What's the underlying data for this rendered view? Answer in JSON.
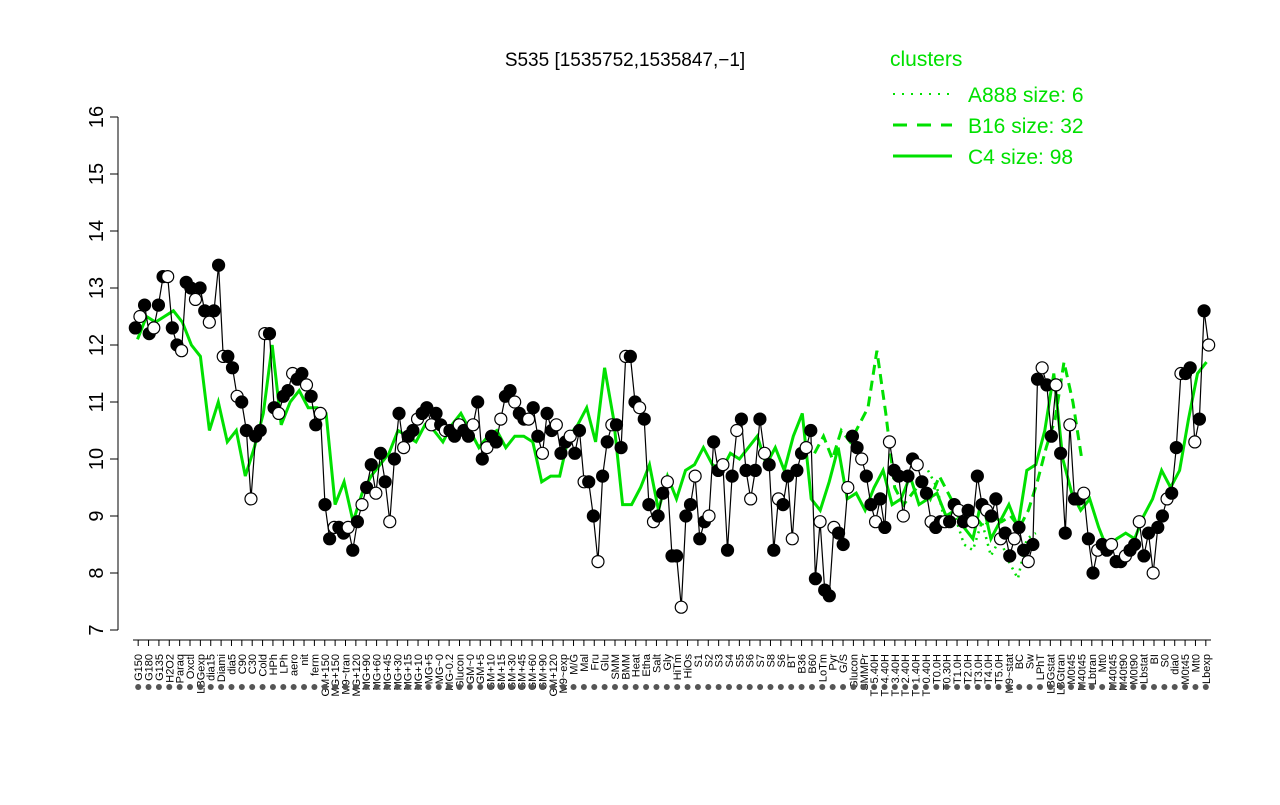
{
  "chart_data": {
    "type": "line",
    "title": "S535 [1535752,1535847,−1]",
    "xlabel": "",
    "ylabel": "",
    "ylim": [
      7,
      16
    ],
    "yticks": [
      7,
      8,
      9,
      10,
      11,
      12,
      13,
      14,
      15,
      16
    ],
    "grid": false,
    "legend": {
      "title": "clusters",
      "placement": "top-right",
      "color": "#00e000",
      "entries": [
        {
          "label": "A888 size: 6",
          "style": "dotted"
        },
        {
          "label": "B16 size: 32",
          "style": "dashed"
        },
        {
          "label": "C4 size: 98",
          "style": "solid"
        }
      ]
    },
    "x_tick_labels": [
      "G150",
      "G180",
      "G135",
      "H2O2",
      "Paraq",
      "Oxctl",
      "LBGexp",
      "dia15",
      "Diami",
      "dia5",
      "C90",
      "C30",
      "Cold",
      "HPh",
      "LPh",
      "aero",
      "nit",
      "ferm",
      "GM+150",
      "MG+150",
      "M9~tran",
      "MG+120",
      "MG+90",
      "MG+60",
      "MG+45",
      "MG+30",
      "MG+15",
      "MG+10",
      "MG+5",
      "MG~0",
      "MG-0.2",
      "Glucon",
      "GM~0",
      "GM+5",
      "GM+10",
      "GM+15",
      "GM+30",
      "GM+45",
      "GM+60",
      "GM+90",
      "GM+120",
      "M9~exp",
      "M/G",
      "Mal",
      "Fru",
      "Glu",
      "SMM",
      "BMM",
      "Heat",
      "Etha",
      "Salt",
      "Gly",
      "HiTm",
      "HiOs",
      "S1",
      "S2",
      "S3",
      "S4",
      "S5",
      "S6",
      "S7",
      "S8",
      "S6",
      "BT",
      "B36",
      "B60",
      "LoTm",
      "Pyr",
      "G/S",
      "Glucon",
      "SMMPr",
      "T~5.40H",
      "T~4.40H",
      "T~3.40H",
      "T~2.40H",
      "T~1.40H",
      "T~0.40H",
      "T0.0H",
      "T0.30H",
      "T1.0H",
      "T2.0H",
      "T3.0H",
      "T4.0H",
      "T5.0H",
      "M9~stat",
      "BC",
      "Sw",
      "LPhT",
      "LBGstat",
      "LBGtran",
      "M0t45",
      "M40t45",
      "Lbtran",
      "Mt0",
      "M40t45",
      "M40t90",
      "M0t90",
      "Lbstat",
      "BI",
      "S0",
      "dia0",
      "M0t45",
      "Mt0",
      "Lbexp"
    ],
    "series": [
      {
        "style": "solid",
        "color": "#00e000",
        "values": [
          12.1,
          12.5,
          12.4,
          12.5,
          12.6,
          12.4,
          12.0,
          11.8,
          10.5,
          11.0,
          10.3,
          10.5,
          9.7,
          10.2,
          10.8,
          12.0,
          10.6,
          11.0,
          11.2,
          10.9,
          10.9,
          10.8,
          9.2,
          9.6,
          8.9,
          9.4,
          9.7,
          9.9,
          10.1,
          10.5,
          10.4,
          10.3,
          10.6,
          10.5,
          10.3,
          10.6,
          10.8,
          10.5,
          10.2,
          10.4,
          10.5,
          10.2,
          10.4,
          10.4,
          10.3,
          9.6,
          9.7,
          9.7,
          10.4,
          10.6,
          10.9,
          10.3,
          11.6,
          10.7,
          9.2,
          9.2,
          9.5,
          9.9,
          9.1,
          9.7,
          9.3,
          9.8,
          9.9,
          10.2,
          9.9,
          9.8,
          10.1,
          10.0,
          10.2,
          10.4,
          9.9,
          10.2,
          9.8,
          10.4,
          10.8,
          9.3,
          9.1,
          9.6,
          10.2,
          9.3,
          9.4,
          9.1,
          9.5,
          9.8,
          9.2,
          9.3,
          9.7,
          9.2,
          9.3,
          9.4,
          9.0,
          9.1,
          8.8,
          8.6,
          9.3,
          8.6,
          8.9,
          9.2,
          8.8,
          9.8,
          9.9,
          10.5,
          11.5,
          10.0,
          9.4,
          9.1,
          9.3,
          8.8,
          8.4,
          8.6,
          8.7,
          8.6,
          9.0,
          9.3,
          9.8,
          9.5,
          9.8,
          10.7,
          11.5,
          11.7
        ]
      },
      {
        "style": "dashed",
        "color": "#00e000",
        "values": [
          null,
          null,
          null,
          null,
          null,
          null,
          null,
          null,
          null,
          null,
          null,
          null,
          null,
          null,
          null,
          null,
          null,
          null,
          null,
          null,
          null,
          null,
          null,
          null,
          null,
          null,
          null,
          null,
          null,
          null,
          null,
          null,
          null,
          null,
          null,
          null,
          null,
          null,
          null,
          null,
          null,
          null,
          null,
          null,
          null,
          null,
          null,
          null,
          null,
          null,
          null,
          null,
          null,
          null,
          null,
          null,
          null,
          null,
          null,
          null,
          null,
          null,
          null,
          null,
          null,
          null,
          null,
          null,
          null,
          null,
          null,
          null,
          null,
          null,
          null,
          null,
          10.1,
          10.4,
          10.0,
          10.5,
          10.3,
          10.6,
          10.9,
          11.9,
          10.8,
          9.5,
          9.2,
          9.4,
          9.6,
          9.3,
          9.7,
          9.4,
          9.1,
          9.2,
          9.0,
          8.8,
          9.0,
          8.9,
          9.0,
          8.8,
          9.1,
          9.6,
          10.2,
          10.7,
          11.7,
          11.0,
          10.0,
          null,
          null,
          null,
          null,
          null,
          null,
          null,
          null,
          null,
          null,
          null,
          null,
          null,
          null
        ]
      },
      {
        "style": "dotted",
        "color": "#00e000",
        "values": [
          null,
          null,
          null,
          null,
          null,
          null,
          null,
          null,
          null,
          null,
          null,
          null,
          null,
          null,
          null,
          null,
          null,
          null,
          null,
          null,
          null,
          null,
          null,
          null,
          null,
          null,
          null,
          null,
          null,
          null,
          null,
          null,
          null,
          null,
          null,
          null,
          null,
          null,
          null,
          null,
          null,
          null,
          null,
          null,
          null,
          null,
          null,
          null,
          null,
          null,
          null,
          null,
          null,
          null,
          null,
          null,
          null,
          null,
          null,
          null,
          null,
          null,
          null,
          null,
          null,
          null,
          null,
          null,
          null,
          null,
          null,
          null,
          null,
          null,
          null,
          null,
          null,
          null,
          null,
          null,
          null,
          null,
          null,
          null,
          null,
          null,
          null,
          null,
          9.8,
          9.5,
          8.8,
          9.0,
          8.5,
          8.4,
          8.9,
          8.3,
          8.6,
          8.2,
          7.9,
          8.6,
          8.7,
          null,
          null,
          null,
          null,
          null,
          null,
          null,
          null,
          null,
          null,
          null,
          null,
          null,
          null,
          null,
          null,
          null,
          null,
          null
        ]
      },
      {
        "style": "points",
        "color": "#000000",
        "values": [
          12.3,
          12.5,
          12.7,
          12.2,
          12.3,
          12.7,
          13.2,
          13.2,
          12.3,
          12.0,
          11.9,
          13.1,
          13.0,
          12.8,
          13.0,
          12.6,
          12.4,
          12.6,
          13.4,
          11.8,
          11.8,
          11.6,
          11.1,
          11.0,
          10.5,
          9.3,
          10.4,
          10.5,
          12.2,
          12.2,
          10.9,
          10.8,
          11.1,
          11.2,
          11.5,
          11.4,
          11.5,
          11.3,
          11.1,
          10.6,
          10.8,
          9.2,
          8.6,
          8.8,
          8.8,
          8.7,
          8.8,
          8.4,
          8.9,
          9.2,
          9.5,
          9.9,
          9.4,
          10.1,
          9.6,
          8.9,
          10.0,
          10.8,
          10.2,
          10.4,
          10.5,
          10.7,
          10.8,
          10.9,
          10.6,
          10.8,
          10.6,
          10.5,
          10.5,
          10.4,
          10.6,
          10.5,
          10.4,
          10.6,
          11.0,
          10.0,
          10.2,
          10.4,
          10.3,
          10.7,
          11.1,
          11.2,
          11.0,
          10.8,
          10.7,
          10.7,
          10.9,
          10.4,
          10.1,
          10.8,
          10.5,
          10.6,
          10.1,
          10.3,
          10.4,
          10.1,
          10.5,
          9.6,
          9.6,
          9.0,
          8.2,
          9.7,
          10.3,
          10.6,
          10.6,
          10.2,
          11.8,
          11.8,
          11.0,
          10.9,
          10.7,
          9.2,
          8.9,
          9.0,
          9.4,
          9.6,
          8.3,
          8.3,
          7.4,
          9.0,
          9.2,
          9.7,
          8.6,
          8.9,
          9.0,
          10.3,
          9.8,
          9.9,
          8.4,
          9.7,
          10.5,
          10.7,
          9.8,
          9.3,
          9.8,
          10.7,
          10.1,
          9.9,
          8.4,
          9.3,
          9.2,
          9.7,
          8.6,
          9.8,
          10.1,
          10.2,
          10.5,
          7.9,
          8.9,
          7.7,
          7.6,
          8.8,
          8.7,
          8.5,
          9.5,
          10.4,
          10.2,
          10.0,
          9.7,
          9.2,
          8.9,
          9.3,
          8.8,
          10.3,
          9.8,
          9.7,
          9.0,
          9.7,
          10.0,
          9.9,
          9.6,
          9.4,
          8.9,
          8.8,
          8.9,
          8.9,
          8.9,
          9.2,
          9.1,
          8.9,
          9.1,
          8.9,
          9.7,
          9.2,
          9.1,
          9.0,
          9.3,
          8.6,
          8.7,
          8.3,
          8.6,
          8.8,
          8.4,
          8.2,
          8.5,
          11.4,
          11.6,
          11.3,
          10.4,
          11.3,
          10.1,
          8.7,
          10.6,
          9.3,
          9.3,
          9.4,
          8.6,
          8.0,
          8.4,
          8.5,
          8.4,
          8.5,
          8.2,
          8.2,
          8.3,
          8.4,
          8.5,
          8.9,
          8.3,
          8.7,
          8.0,
          8.8,
          9.0,
          9.3,
          9.4,
          10.2,
          11.5,
          11.5,
          11.6,
          10.3,
          10.7,
          12.6,
          12.0
        ]
      }
    ]
  }
}
